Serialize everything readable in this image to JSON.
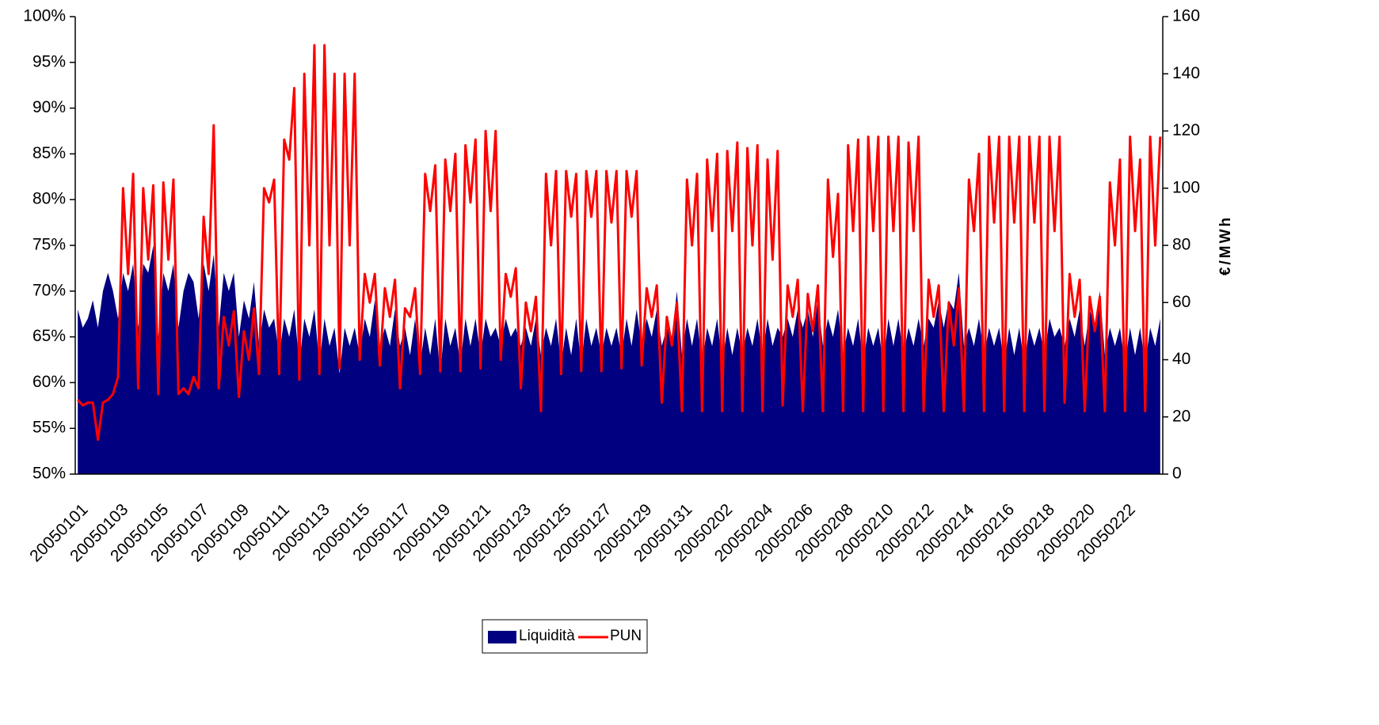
{
  "chart_data": {
    "type": "area_line",
    "categories": [
      "20050101",
      null,
      null,
      null,
      null,
      null,
      null,
      null,
      "20050103",
      null,
      null,
      null,
      null,
      null,
      null,
      null,
      "20050105",
      null,
      null,
      null,
      null,
      null,
      null,
      null,
      "20050107",
      null,
      null,
      null,
      null,
      null,
      null,
      null,
      "20050109",
      null,
      null,
      null,
      null,
      null,
      null,
      null,
      "20050111",
      null,
      null,
      null,
      null,
      null,
      null,
      null,
      "20050113",
      null,
      null,
      null,
      null,
      null,
      null,
      null,
      "20050115",
      null,
      null,
      null,
      null,
      null,
      null,
      null,
      "20050117",
      null,
      null,
      null,
      null,
      null,
      null,
      null,
      "20050119",
      null,
      null,
      null,
      null,
      null,
      null,
      null,
      "20050121",
      null,
      null,
      null,
      null,
      null,
      null,
      null,
      "20050123",
      null,
      null,
      null,
      null,
      null,
      null,
      null,
      "20050125",
      null,
      null,
      null,
      null,
      null,
      null,
      null,
      "20050127",
      null,
      null,
      null,
      null,
      null,
      null,
      null,
      "20050129",
      null,
      null,
      null,
      null,
      null,
      null,
      null,
      "20050131",
      null,
      null,
      null,
      null,
      null,
      null,
      null,
      "20050202",
      null,
      null,
      null,
      null,
      null,
      null,
      null,
      "20050204",
      null,
      null,
      null,
      null,
      null,
      null,
      null,
      "20050206",
      null,
      null,
      null,
      null,
      null,
      null,
      null,
      "20050208",
      null,
      null,
      null,
      null,
      null,
      null,
      null,
      "20050210",
      null,
      null,
      null,
      null,
      null,
      null,
      null,
      "20050212",
      null,
      null,
      null,
      null,
      null,
      null,
      null,
      "20050214",
      null,
      null,
      null,
      null,
      null,
      null,
      null,
      "20050216",
      null,
      null,
      null,
      null,
      null,
      null,
      null,
      "20050218",
      null,
      null,
      null,
      null,
      null,
      null,
      null,
      "20050220",
      null,
      null,
      null,
      null,
      null,
      null,
      null,
      "20050222",
      null,
      null,
      null,
      null,
      null,
      null,
      null
    ],
    "series": [
      {
        "name": "Liquidità",
        "type": "area",
        "color": "#000080",
        "values": [
          68,
          66,
          67,
          69,
          66,
          70,
          72,
          70,
          67,
          72,
          70,
          73,
          66,
          73,
          72,
          75,
          65,
          72,
          70,
          73,
          66,
          70,
          72,
          71,
          67,
          73,
          70,
          74,
          66,
          72,
          70,
          72,
          65,
          69,
          67,
          71,
          64,
          68,
          66,
          67,
          63,
          67,
          65,
          68,
          62,
          67,
          65,
          68,
          62,
          67,
          64,
          66,
          61,
          66,
          64,
          66,
          63,
          67,
          65,
          69,
          64,
          66,
          64,
          68,
          64,
          66,
          63,
          67,
          62,
          66,
          63,
          67,
          61,
          67,
          64,
          66,
          62,
          67,
          64,
          67,
          63,
          67,
          65,
          66,
          64,
          67,
          65,
          66,
          64,
          66,
          64,
          67,
          63,
          66,
          64,
          67,
          62,
          66,
          63,
          67,
          62,
          67,
          64,
          66,
          63,
          66,
          64,
          66,
          63,
          67,
          64,
          68,
          64,
          67,
          65,
          68,
          64,
          66,
          65,
          70,
          63,
          67,
          64,
          67,
          62,
          66,
          64,
          67,
          62,
          66,
          63,
          66,
          63,
          66,
          64,
          67,
          63,
          67,
          64,
          66,
          65,
          67,
          65,
          68,
          66,
          68,
          65,
          69,
          64,
          67,
          65,
          68,
          63,
          66,
          64,
          67,
          62,
          66,
          64,
          66,
          62,
          67,
          64,
          67,
          63,
          66,
          64,
          67,
          64,
          67,
          66,
          69,
          66,
          69,
          68,
          72,
          64,
          66,
          64,
          67,
          63,
          66,
          64,
          66,
          62,
          66,
          63,
          66,
          62,
          66,
          64,
          66,
          63,
          67,
          65,
          66,
          64,
          67,
          65,
          68,
          64,
          68,
          66,
          70,
          63,
          66,
          64,
          66,
          62,
          66,
          63,
          66,
          62,
          66,
          64,
          67
        ]
      },
      {
        "name": "PUN",
        "type": "line",
        "axis": "y2",
        "color": "#ff0000",
        "values": [
          26,
          24,
          25,
          25,
          12,
          25,
          26,
          28,
          34,
          100,
          70,
          105,
          30,
          100,
          75,
          101,
          28,
          102,
          75,
          103,
          28,
          30,
          28,
          34,
          30,
          90,
          70,
          122,
          30,
          55,
          45,
          57,
          27,
          50,
          40,
          58,
          35,
          100,
          95,
          103,
          35,
          117,
          110,
          135,
          33,
          140,
          80,
          150,
          35,
          150,
          80,
          140,
          37,
          140,
          80,
          140,
          40,
          70,
          60,
          70,
          38,
          65,
          55,
          68,
          30,
          58,
          55,
          65,
          35,
          105,
          92,
          108,
          36,
          110,
          92,
          112,
          36,
          115,
          95,
          117,
          37,
          120,
          92,
          120,
          40,
          70,
          62,
          72,
          30,
          60,
          50,
          62,
          22,
          105,
          80,
          106,
          35,
          106,
          90,
          105,
          36,
          106,
          90,
          106,
          36,
          106,
          88,
          106,
          37,
          106,
          90,
          106,
          38,
          65,
          55,
          66,
          25,
          55,
          45,
          60,
          22,
          103,
          80,
          105,
          22,
          110,
          85,
          112,
          22,
          113,
          85,
          116,
          22,
          114,
          80,
          115,
          22,
          110,
          75,
          113,
          24,
          66,
          55,
          68,
          22,
          63,
          50,
          66,
          22,
          103,
          76,
          98,
          22,
          115,
          85,
          117,
          22,
          118,
          85,
          118,
          22,
          118,
          85,
          118,
          22,
          116,
          85,
          118,
          22,
          68,
          55,
          66,
          22,
          60,
          45,
          65,
          22,
          103,
          85,
          112,
          22,
          118,
          88,
          118,
          22,
          118,
          88,
          118,
          22,
          118,
          88,
          118,
          22,
          118,
          85,
          118,
          25,
          70,
          55,
          68,
          22,
          62,
          50,
          62,
          22,
          102,
          80,
          110,
          22,
          118,
          85,
          110,
          22,
          118,
          80,
          118
        ]
      }
    ],
    "ylim": [
      50,
      100
    ],
    "yticks": [
      {
        "value": 50,
        "label": "50%"
      },
      {
        "value": 55,
        "label": "55%"
      },
      {
        "value": 60,
        "label": "60%"
      },
      {
        "value": 65,
        "label": "65%"
      },
      {
        "value": 70,
        "label": "70%"
      },
      {
        "value": 75,
        "label": "75%"
      },
      {
        "value": 80,
        "label": "80%"
      },
      {
        "value": 85,
        "label": "85%"
      },
      {
        "value": 90,
        "label": "90%"
      },
      {
        "value": 95,
        "label": "95%"
      },
      {
        "value": 100,
        "label": "100%"
      }
    ],
    "y2lim": [
      0,
      160
    ],
    "y2ticks": [
      0,
      20,
      40,
      60,
      80,
      100,
      120,
      140,
      160
    ],
    "y2label": "€/MWh",
    "legend": "bottom"
  }
}
